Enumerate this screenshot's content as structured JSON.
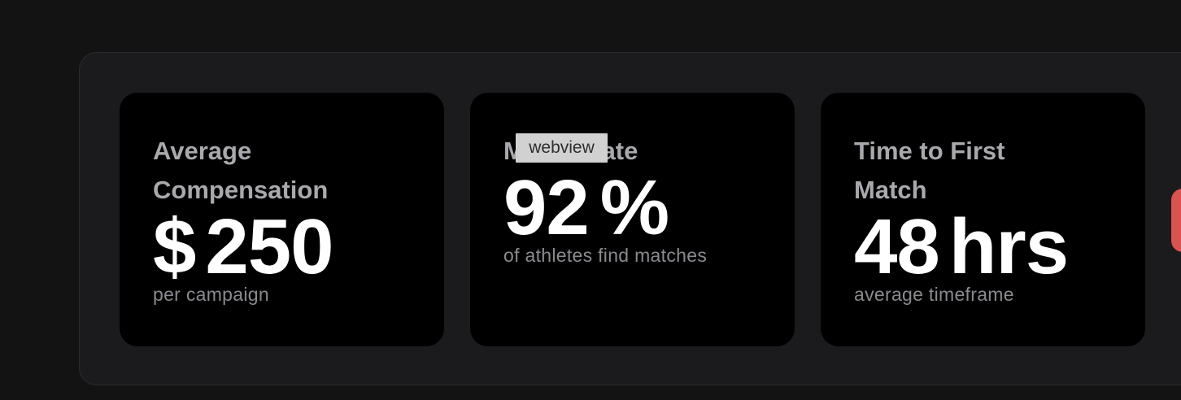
{
  "stats": [
    {
      "title_line1": "Average",
      "title_line2": "Compensation",
      "prefix": "$",
      "value": "250",
      "suffix": "",
      "caption": "per campaign"
    },
    {
      "title_line1": "Match Rate",
      "title_line2": "",
      "prefix": "",
      "value": "92",
      "suffix": "%",
      "caption": "of athletes find matches"
    },
    {
      "title_line1": "Time to First",
      "title_line2": "Match",
      "prefix": "",
      "value": "48",
      "suffix": "hrs",
      "caption": "average timeframe"
    }
  ],
  "tooltip": {
    "label": "webview"
  },
  "colors": {
    "page_background": "#131314",
    "panel_background": "#1b1b1d",
    "card_background": "#000000",
    "title_text": "#a9a9ad",
    "value_text": "#ffffff",
    "caption_text": "#8a8a8f",
    "accent": "#d9534f"
  }
}
